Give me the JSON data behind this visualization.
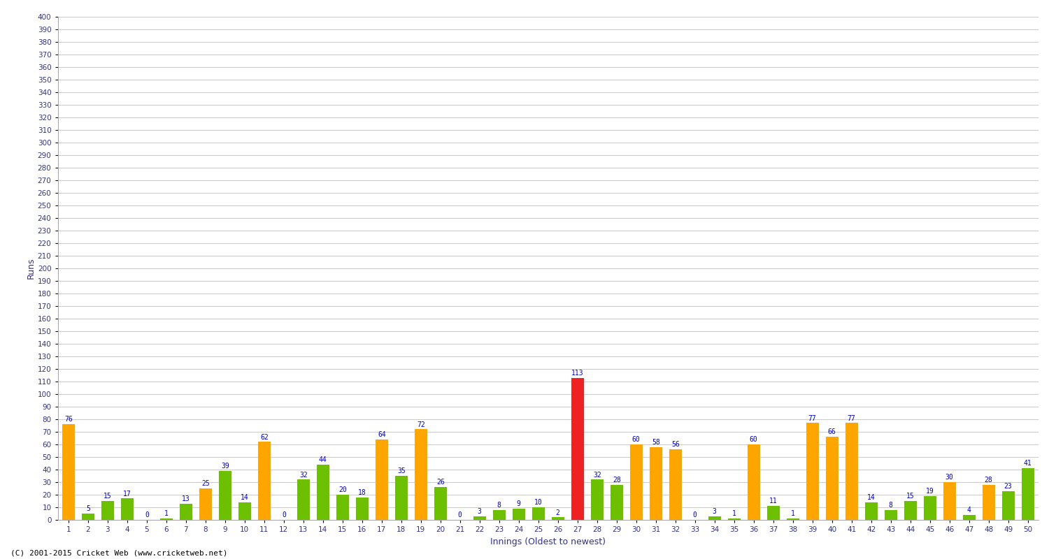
{
  "xlabel": "Innings (Oldest to newest)",
  "ylabel": "Runs",
  "footer": "(C) 2001-2015 Cricket Web (www.cricketweb.net)",
  "ylim": [
    0,
    400
  ],
  "innings": [
    1,
    2,
    3,
    4,
    5,
    6,
    7,
    8,
    9,
    10,
    11,
    12,
    13,
    14,
    15,
    16,
    17,
    18,
    19,
    20,
    21,
    22,
    23,
    24,
    25,
    26,
    27,
    28,
    29,
    30,
    31,
    32,
    33,
    34,
    35,
    36,
    37,
    38,
    39,
    40,
    41,
    42,
    43,
    44,
    45,
    46,
    47,
    48,
    49,
    50
  ],
  "values": [
    76,
    5,
    15,
    17,
    0,
    1,
    13,
    25,
    39,
    14,
    62,
    0,
    32,
    44,
    20,
    18,
    64,
    35,
    72,
    26,
    0,
    3,
    8,
    9,
    10,
    2,
    113,
    32,
    28,
    60,
    58,
    56,
    0,
    3,
    1,
    60,
    11,
    1,
    77,
    66,
    77,
    14,
    8,
    15,
    19,
    30,
    4,
    28,
    23,
    41
  ],
  "colors": [
    "orange",
    "green",
    "green",
    "green",
    "green",
    "green",
    "green",
    "orange",
    "green",
    "green",
    "orange",
    "green",
    "green",
    "green",
    "green",
    "green",
    "orange",
    "green",
    "orange",
    "green",
    "green",
    "green",
    "green",
    "green",
    "green",
    "green",
    "red",
    "green",
    "green",
    "orange",
    "orange",
    "orange",
    "green",
    "green",
    "green",
    "orange",
    "green",
    "green",
    "orange",
    "orange",
    "orange",
    "green",
    "green",
    "green",
    "green",
    "orange",
    "green",
    "orange",
    "green",
    "green"
  ],
  "bar_color_orange": "#FFA500",
  "bar_color_green": "#6DC000",
  "bar_color_red": "#EE2222",
  "label_color": "#0000CC",
  "background_color": "#FFFFFF",
  "grid_color": "#CCCCCC",
  "title_color": "#000080",
  "axis_label_color": "#333388",
  "tick_label_color": "#333388",
  "footer_color": "#000000",
  "title_fontsize": 12,
  "axis_label_fontsize": 9,
  "tick_fontsize": 7.5,
  "value_label_fontsize": 7,
  "footer_fontsize": 8
}
